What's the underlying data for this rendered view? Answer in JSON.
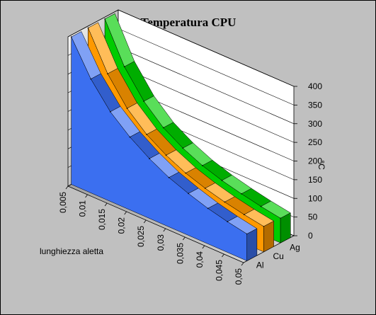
{
  "chart_data": {
    "type": "area",
    "title": "Temperatura CPU",
    "xlabel": "lunghiezza aletta",
    "ylabel": "°C",
    "x": [
      "0,005",
      "0,01",
      "0,015",
      "0,02",
      "0,025",
      "0,03",
      "0,035",
      "0,04",
      "0,045",
      "0,05"
    ],
    "y_ticks": [
      "0",
      "50",
      "100",
      "150",
      "200",
      "250",
      "300",
      "350",
      "400"
    ],
    "ylim": [
      0,
      400
    ],
    "series": [
      {
        "name": "Al",
        "color": "#3b6ff0",
        "values": [
          395,
          305,
          240,
          195,
          160,
          132,
          112,
          95,
          82,
          72
        ]
      },
      {
        "name": "Cu",
        "color": "#ff9900",
        "values": [
          395,
          295,
          225,
          178,
          145,
          120,
          102,
          88,
          77,
          68
        ]
      },
      {
        "name": "Ag",
        "color": "#00cc00",
        "values": [
          395,
          290,
          220,
          172,
          140,
          116,
          99,
          86,
          75,
          66
        ]
      }
    ],
    "grid": true
  }
}
